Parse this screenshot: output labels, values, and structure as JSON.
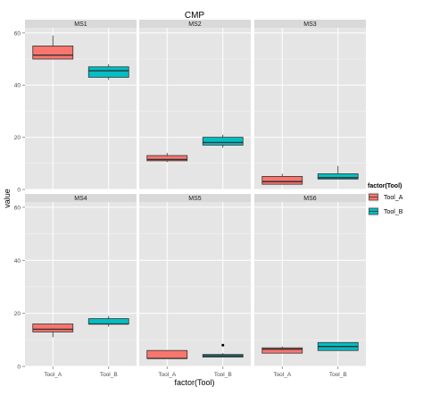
{
  "chart_data": {
    "type": "boxplot",
    "title": "CMP",
    "xlabel": "factor(Tool)",
    "ylabel": "value",
    "ylim": [
      0,
      62
    ],
    "y_ticks": [
      0,
      20,
      40,
      60
    ],
    "x_categories": [
      "Tool_A",
      "Tool_B"
    ],
    "grid": true,
    "legend": {
      "title": "factor(Tool)",
      "placement": "right",
      "entries": [
        {
          "name": "Tool_A",
          "color": "#f8766d"
        },
        {
          "name": "Tool_B",
          "color": "#00bfc4"
        }
      ]
    },
    "panels": [
      {
        "name": "MS1",
        "boxes": [
          {
            "tool": "Tool_A",
            "min": 50,
            "q1": 50,
            "median": 51.5,
            "q3": 55,
            "max": 59,
            "outliers": []
          },
          {
            "tool": "Tool_B",
            "min": 42,
            "q1": 43,
            "median": 45.5,
            "q3": 47,
            "max": 48,
            "outliers": []
          }
        ]
      },
      {
        "name": "MS2",
        "boxes": [
          {
            "tool": "Tool_A",
            "min": 10.5,
            "q1": 11,
            "median": 11.5,
            "q3": 13,
            "max": 14,
            "outliers": []
          },
          {
            "tool": "Tool_B",
            "min": 16,
            "q1": 17,
            "median": 18,
            "q3": 20,
            "max": 21,
            "outliers": []
          }
        ]
      },
      {
        "name": "MS3",
        "boxes": [
          {
            "tool": "Tool_A",
            "min": 2,
            "q1": 2,
            "median": 3,
            "q3": 5,
            "max": 6,
            "outliers": []
          },
          {
            "tool": "Tool_B",
            "min": 4,
            "q1": 4,
            "median": 4.5,
            "q3": 6,
            "max": 9,
            "outliers": []
          }
        ]
      },
      {
        "name": "MS4",
        "boxes": [
          {
            "tool": "Tool_A",
            "min": 11,
            "q1": 13,
            "median": 14,
            "q3": 16,
            "max": 16,
            "outliers": []
          },
          {
            "tool": "Tool_B",
            "min": 15,
            "q1": 16,
            "median": 16,
            "q3": 18,
            "max": 19,
            "outliers": []
          }
        ]
      },
      {
        "name": "MS5",
        "boxes": [
          {
            "tool": "Tool_A",
            "min": 3,
            "q1": 3,
            "median": 3,
            "q3": 6,
            "max": 6,
            "outliers": []
          },
          {
            "tool": "Tool_B",
            "min": 3.5,
            "q1": 3.5,
            "median": 4,
            "q3": 4.5,
            "max": 5,
            "outliers": [
              8
            ]
          }
        ]
      },
      {
        "name": "MS6",
        "boxes": [
          {
            "tool": "Tool_A",
            "min": 5,
            "q1": 5,
            "median": 6.5,
            "q3": 7,
            "max": 7.5,
            "outliers": []
          },
          {
            "tool": "Tool_B",
            "min": 6,
            "q1": 6,
            "median": 7.5,
            "q3": 9,
            "max": 9,
            "outliers": []
          }
        ]
      }
    ]
  }
}
